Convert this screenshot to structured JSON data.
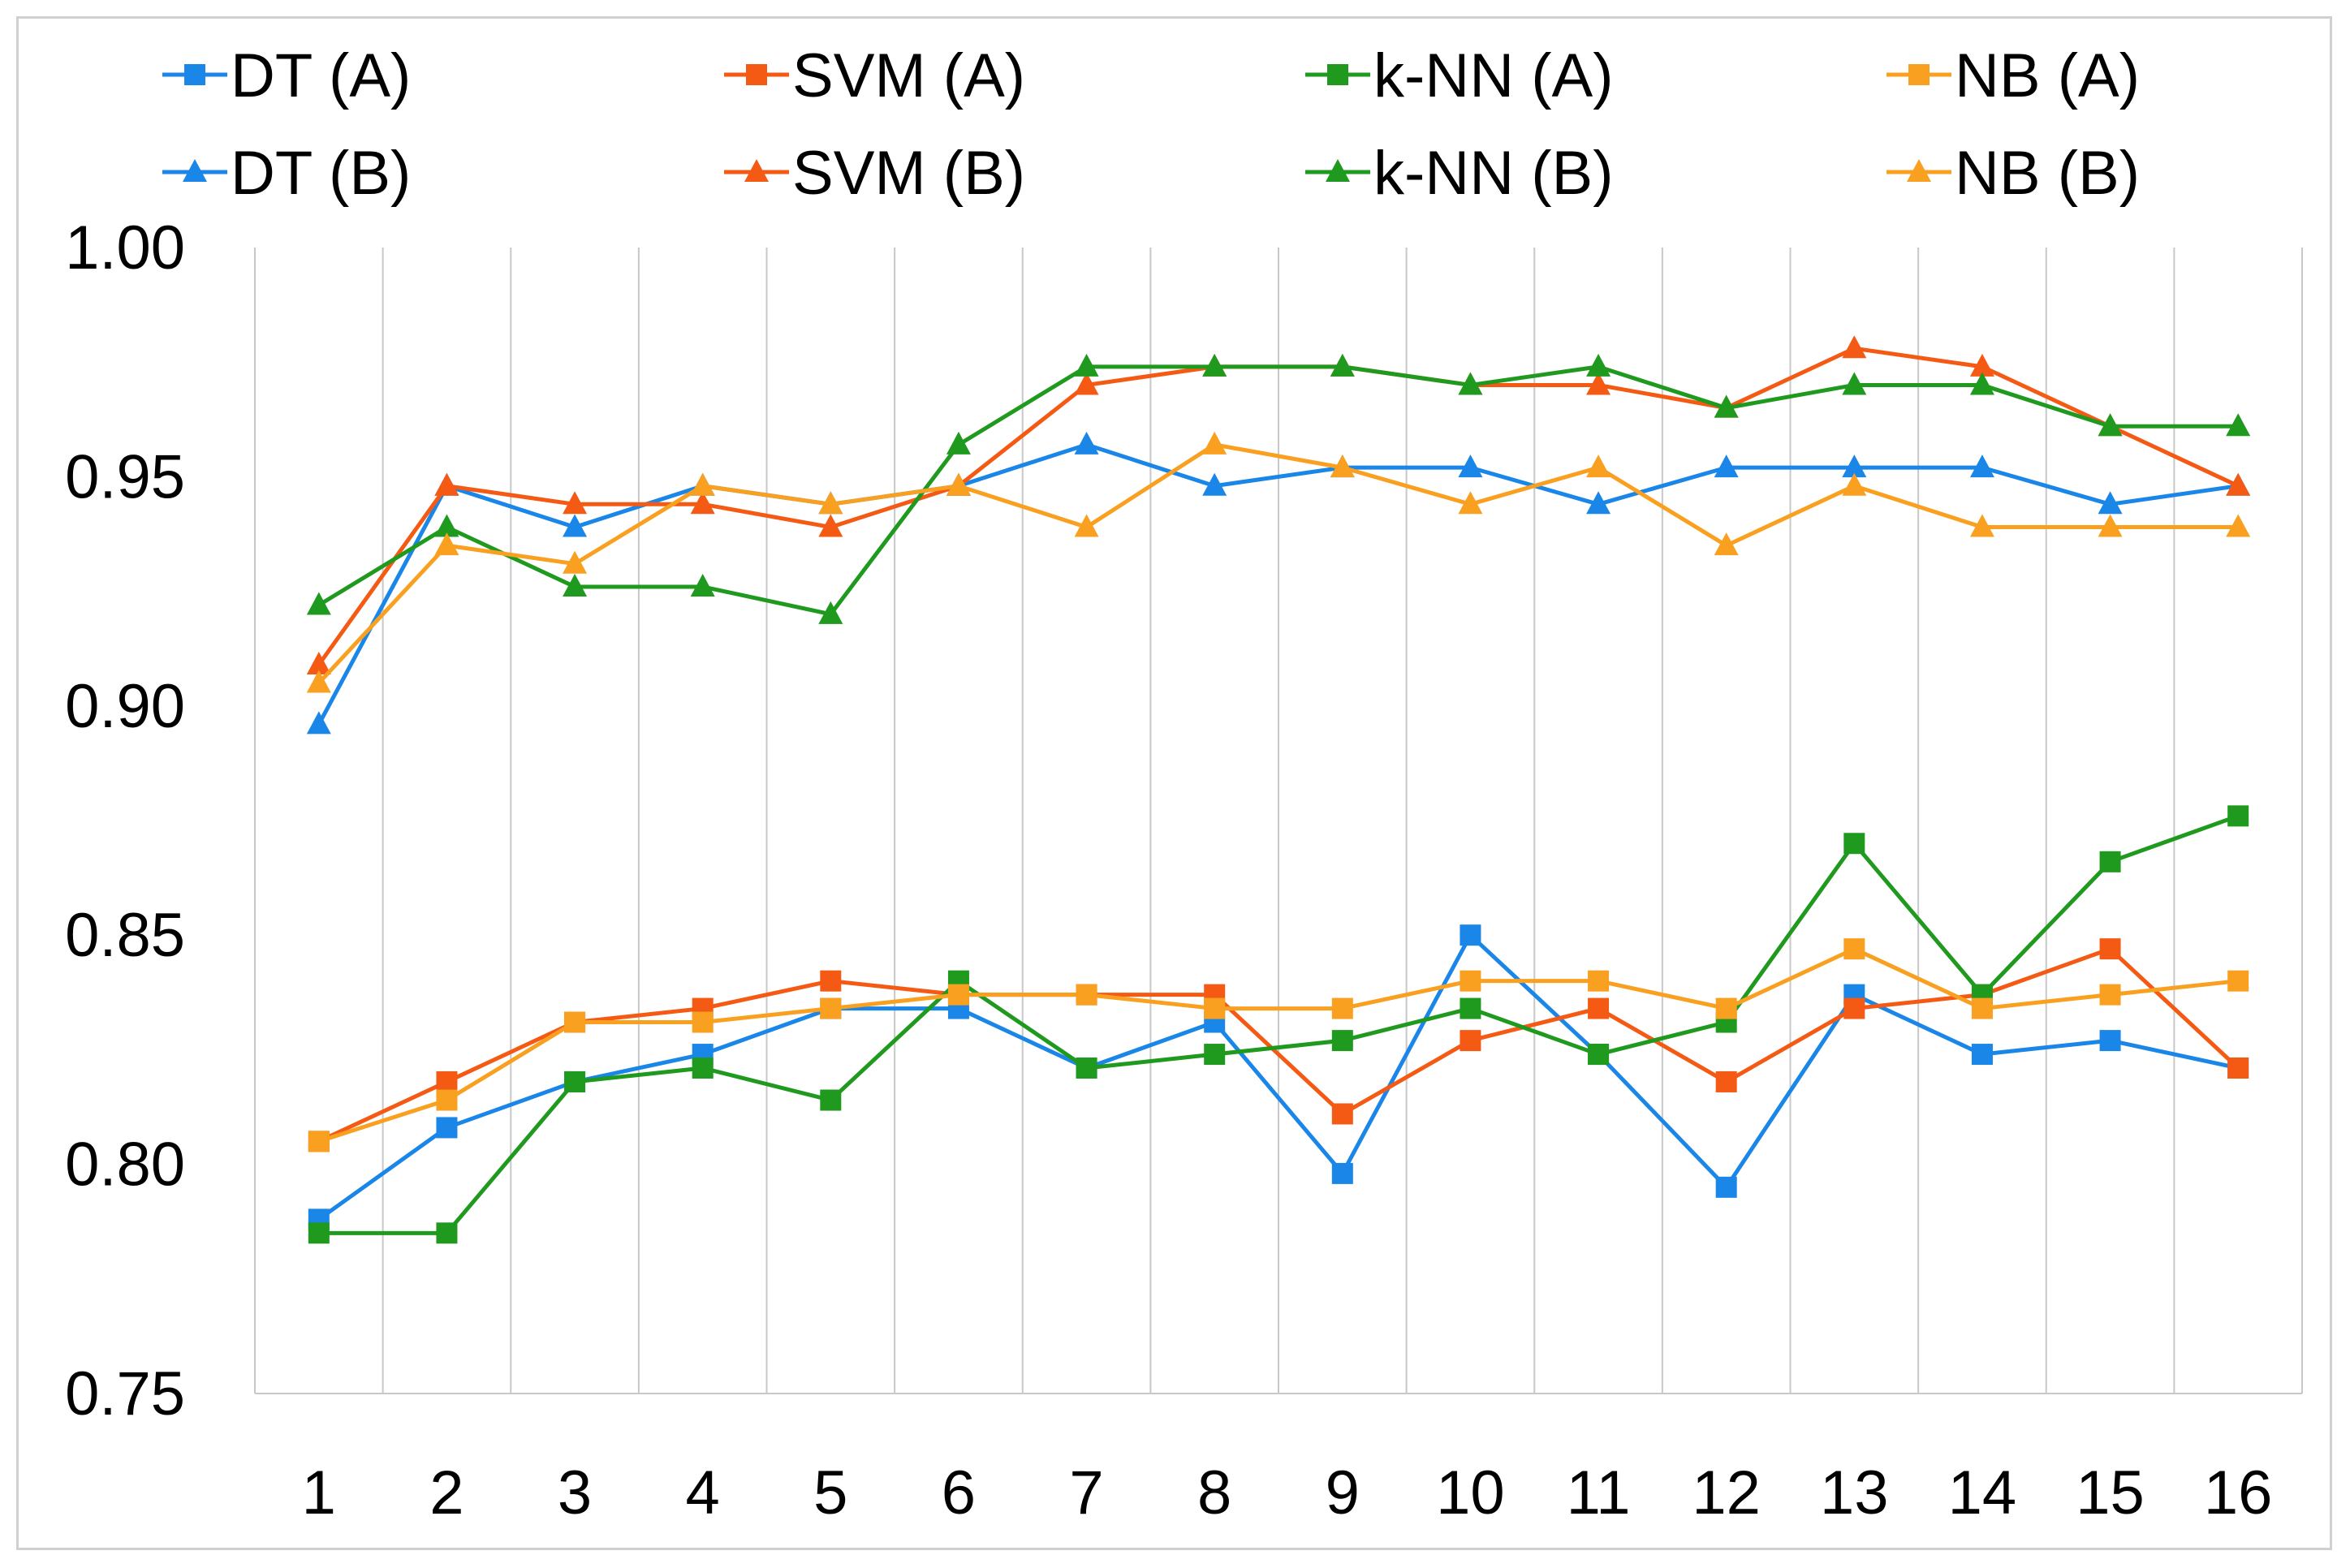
{
  "chart_data": {
    "type": "line",
    "title": "",
    "xlabel": "",
    "ylabel": "",
    "categories": [
      "1",
      "2",
      "3",
      "4",
      "5",
      "6",
      "7",
      "8",
      "9",
      "10",
      "11",
      "12",
      "13",
      "14",
      "15",
      "16"
    ],
    "ylim": [
      0.75,
      1.0
    ],
    "yticks": [
      "0.75",
      "0.80",
      "0.85",
      "0.90",
      "0.95",
      "1.00"
    ],
    "grid": "vertical",
    "legend_position": "top",
    "series": [
      {
        "name": "DT (A)",
        "color": "#1a86e8",
        "marker": "square",
        "values": [
          0.788,
          0.808,
          0.818,
          0.824,
          0.834,
          0.834,
          0.821,
          0.831,
          0.798,
          0.85,
          0.824,
          0.795,
          0.837,
          0.824,
          0.827,
          0.821
        ]
      },
      {
        "name": "SVM (A)",
        "color": "#f55a14",
        "marker": "square",
        "values": [
          0.805,
          0.818,
          0.831,
          0.834,
          0.84,
          0.837,
          0.837,
          0.837,
          0.811,
          0.827,
          0.834,
          0.818,
          0.834,
          0.837,
          0.847,
          0.821
        ]
      },
      {
        "name": "k-NN (A)",
        "color": "#1f9a1f",
        "marker": "square",
        "values": [
          0.785,
          0.785,
          0.818,
          0.821,
          0.814,
          0.84,
          0.821,
          0.824,
          0.827,
          0.834,
          0.824,
          0.831,
          0.87,
          0.837,
          0.866,
          0.876
        ]
      },
      {
        "name": "NB (A)",
        "color": "#f9a020",
        "marker": "square",
        "values": [
          0.805,
          0.814,
          0.831,
          0.831,
          0.834,
          0.837,
          0.837,
          0.834,
          0.834,
          0.84,
          0.84,
          0.834,
          0.847,
          0.834,
          0.837,
          0.84
        ]
      },
      {
        "name": "DT (B)",
        "color": "#1a86e8",
        "marker": "triangle",
        "values": [
          0.896,
          0.948,
          0.939,
          0.948,
          0.944,
          0.948,
          0.957,
          0.948,
          0.952,
          0.952,
          0.944,
          0.952,
          0.952,
          0.952,
          0.944,
          0.948
        ]
      },
      {
        "name": "SVM (B)",
        "color": "#f55a14",
        "marker": "triangle",
        "values": [
          0.909,
          0.948,
          0.944,
          0.944,
          0.939,
          0.948,
          0.97,
          0.974,
          0.974,
          0.97,
          0.97,
          0.965,
          0.978,
          0.974,
          0.961,
          0.948
        ]
      },
      {
        "name": "k-NN (B)",
        "color": "#1f9a1f",
        "marker": "triangle",
        "values": [
          0.922,
          0.939,
          0.926,
          0.926,
          0.92,
          0.957,
          0.974,
          0.974,
          0.974,
          0.97,
          0.974,
          0.965,
          0.97,
          0.97,
          0.961,
          0.961
        ]
      },
      {
        "name": "NB (B)",
        "color": "#f9a020",
        "marker": "triangle",
        "values": [
          0.905,
          0.935,
          0.931,
          0.948,
          0.944,
          0.948,
          0.939,
          0.957,
          0.952,
          0.944,
          0.952,
          0.935,
          0.948,
          0.939,
          0.939,
          0.939
        ]
      }
    ]
  }
}
